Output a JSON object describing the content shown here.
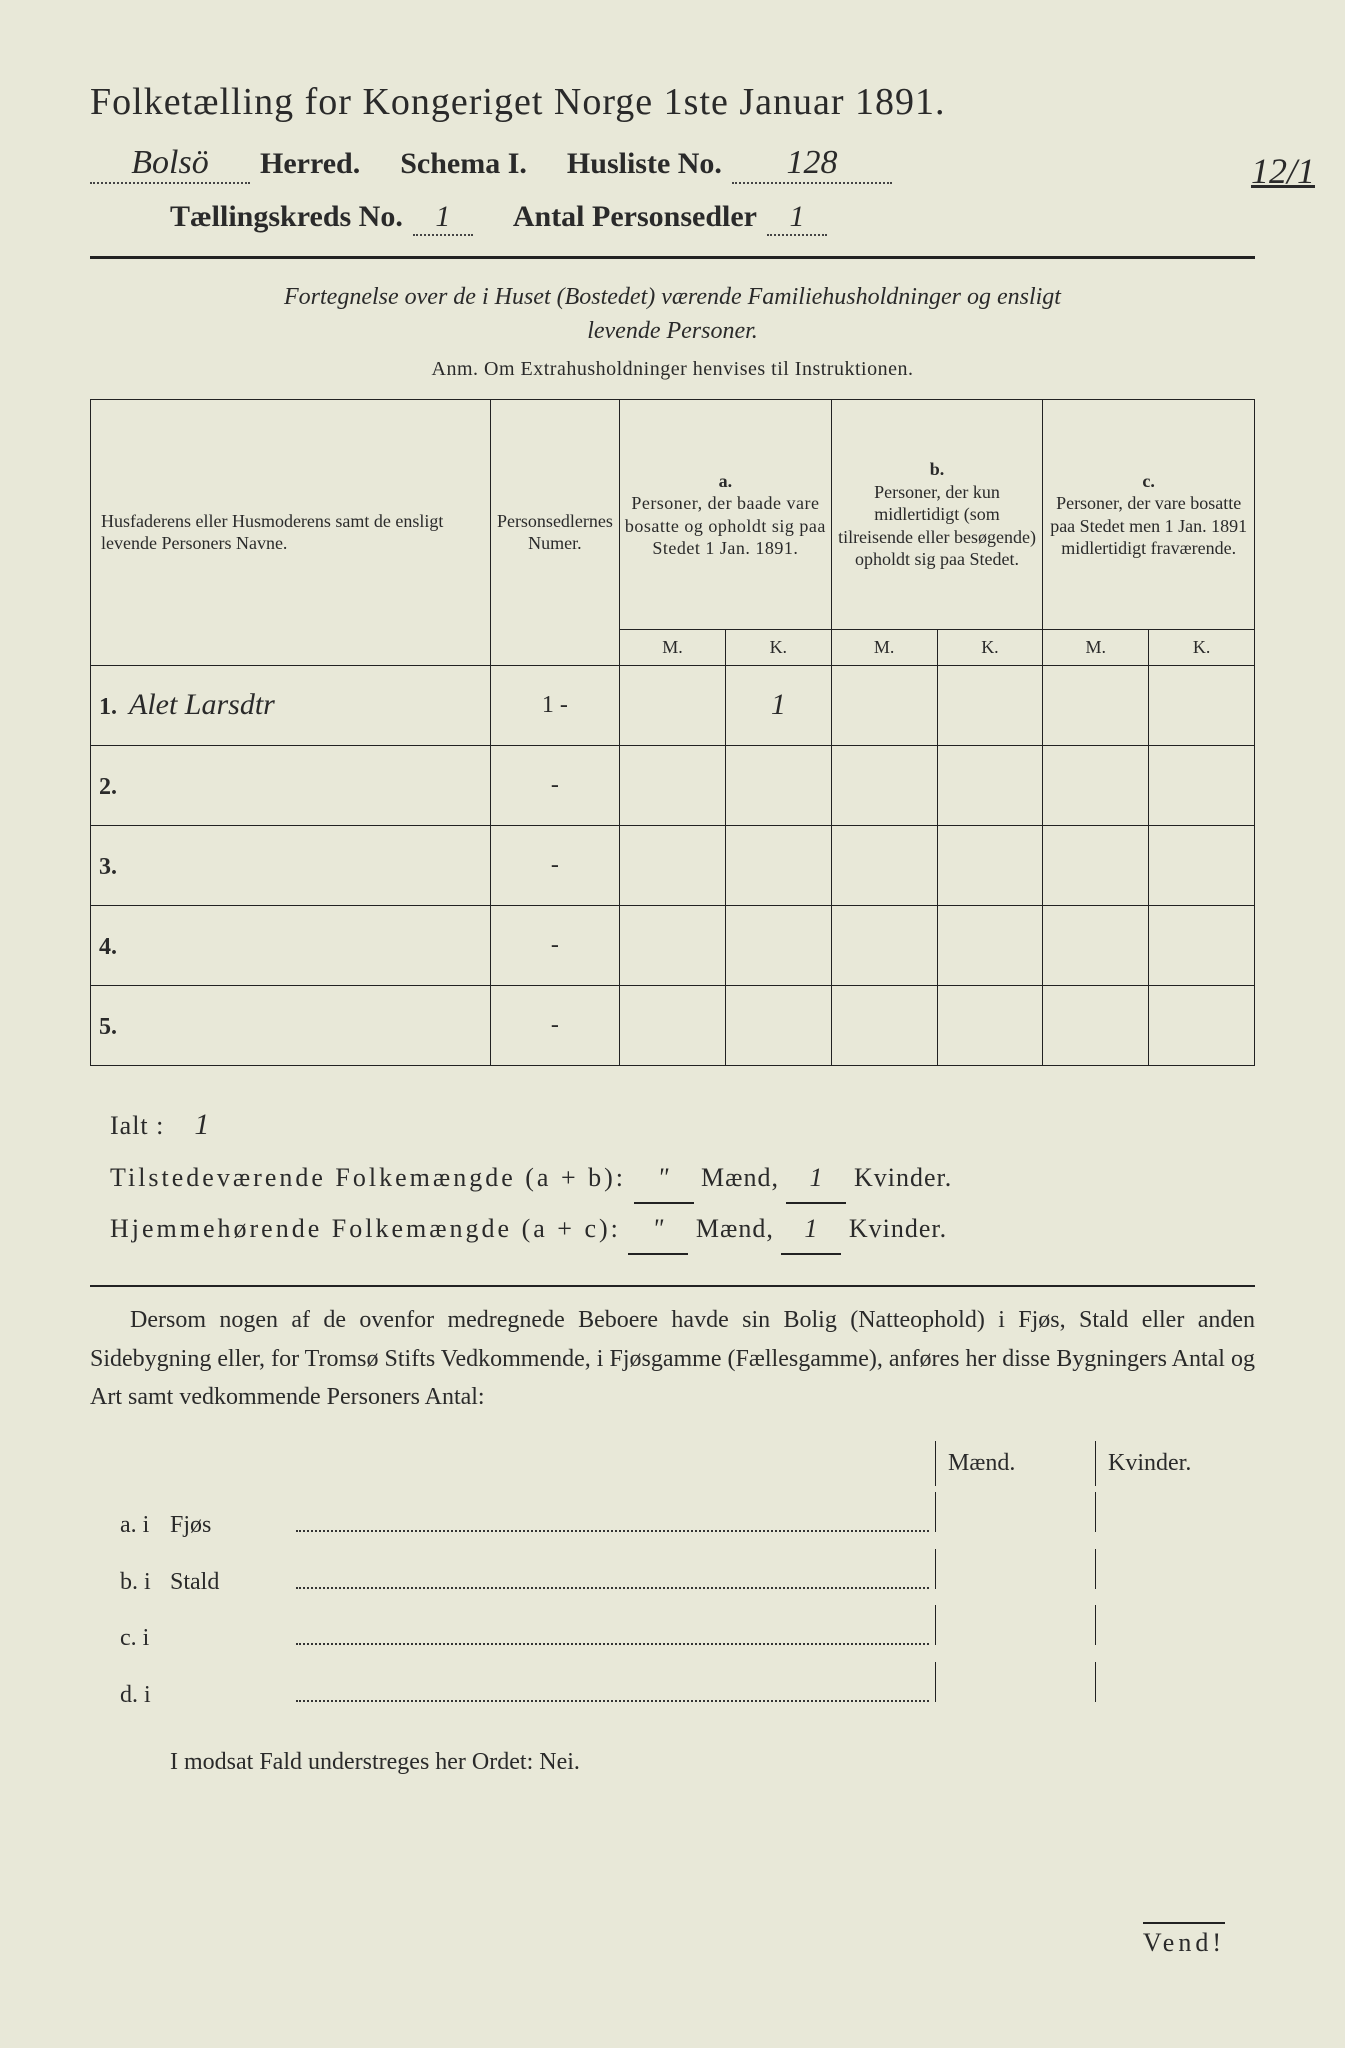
{
  "bg_color": "#e8e8d8",
  "ink_color": "#2a2a2a",
  "title": "Folketælling for Kongeriget Norge 1ste Januar 1891.",
  "herred_label": "Herred.",
  "herred_value": "Bolsö",
  "schema_label": "Schema I.",
  "husliste_label": "Husliste No.",
  "husliste_value": "128",
  "margin_number": "12/1",
  "kreds_label": "Tællingskreds No.",
  "kreds_value": "1",
  "antal_label": "Antal Personsedler",
  "antal_value": "1",
  "instruction_line1": "Fortegnelse over de i Huset (Bostedet) værende Familiehusholdninger og ensligt",
  "instruction_line2": "levende Personer.",
  "anm_text": "Anm. Om Extrahusholdninger henvises til Instruktionen.",
  "table": {
    "col_name_header": "Husfaderens eller Husmoderens samt de ensligt levende Personers Navne.",
    "col_num_header": "Personsedlernes Numer.",
    "col_a_label": "a.",
    "col_a_text": "Personer, der baade vare bosatte og opholdt sig paa Stedet 1 Jan. 1891.",
    "col_b_label": "b.",
    "col_b_text": "Personer, der kun midlertidigt (som tilreisende eller besøgende) opholdt sig paa Stedet.",
    "col_c_label": "c.",
    "col_c_text": "Personer, der vare bosatte paa Stedet men 1 Jan. 1891 midlertidigt fraværende.",
    "m_label": "M.",
    "k_label": "K.",
    "rows": [
      {
        "n": "1.",
        "name": "Alet Larsdtr",
        "num": "1 -",
        "a_m": "",
        "a_k": "1",
        "b_m": "",
        "b_k": "",
        "c_m": "",
        "c_k": ""
      },
      {
        "n": "2.",
        "name": "",
        "num": "-",
        "a_m": "",
        "a_k": "",
        "b_m": "",
        "b_k": "",
        "c_m": "",
        "c_k": ""
      },
      {
        "n": "3.",
        "name": "",
        "num": "-",
        "a_m": "",
        "a_k": "",
        "b_m": "",
        "b_k": "",
        "c_m": "",
        "c_k": ""
      },
      {
        "n": "4.",
        "name": "",
        "num": "-",
        "a_m": "",
        "a_k": "",
        "b_m": "",
        "b_k": "",
        "c_m": "",
        "c_k": ""
      },
      {
        "n": "5.",
        "name": "",
        "num": "-",
        "a_m": "",
        "a_k": "",
        "b_m": "",
        "b_k": "",
        "c_m": "",
        "c_k": ""
      }
    ]
  },
  "totals": {
    "ialt_label": "Ialt :",
    "ialt_value": "1",
    "tilstede_label": "Tilstedeværende Folkemængde (a + b):",
    "tilstede_m": "\"",
    "tilstede_k": "1",
    "hjemme_label": "Hjemmehørende Folkemængde (a + c):",
    "hjemme_m": "\"",
    "hjemme_k": "1",
    "maend": "Mænd,",
    "kvinder": "Kvinder."
  },
  "para_text": "Dersom nogen af de ovenfor medregnede Beboere havde sin Bolig (Natteophold) i Fjøs, Stald eller anden Sidebygning eller, for Tromsø Stifts Vedkommende, i Fjøsgamme (Fællesgamme), anføres her disse Bygningers Antal og Art samt vedkommende Personers Antal:",
  "dwell": {
    "maend": "Mænd.",
    "kvinder": "Kvinder.",
    "rows": [
      {
        "label": "a. i",
        "type": "Fjøs"
      },
      {
        "label": "b. i",
        "type": "Stald"
      },
      {
        "label": "c. i",
        "type": ""
      },
      {
        "label": "d. i",
        "type": ""
      }
    ]
  },
  "nei_text": "I modsat Fald understreges her Ordet: Nei.",
  "vend": "Vend!"
}
